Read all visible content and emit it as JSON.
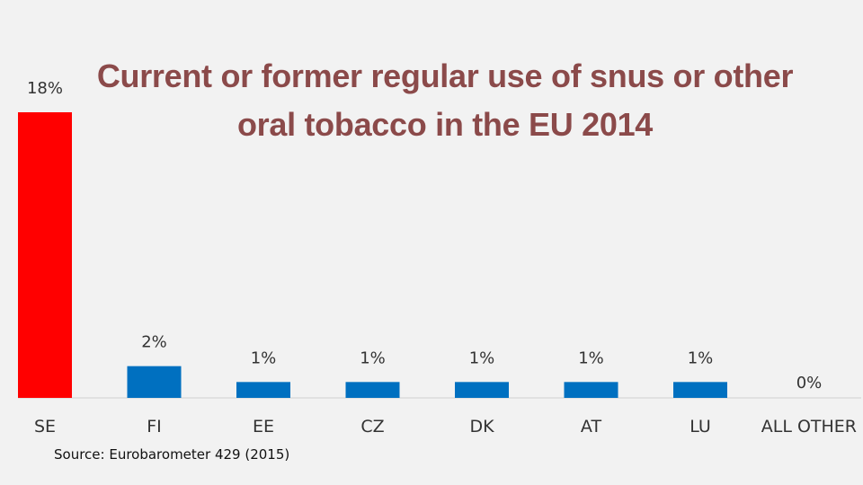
{
  "chart_data": {
    "type": "bar",
    "title": "Current or former regular use of snus or other oral tobacco in the EU 2014",
    "categories": [
      "SE",
      "FI",
      "EE",
      "CZ",
      "DK",
      "AT",
      "LU",
      "ALL OTHER"
    ],
    "values": [
      18,
      2,
      1,
      1,
      1,
      1,
      1,
      0
    ],
    "data_labels": [
      "18%",
      "2%",
      "1%",
      "1%",
      "1%",
      "1%",
      "1%",
      "0%"
    ],
    "ylim": [
      0,
      18
    ],
    "grid": false,
    "colors": {
      "highlight": "#ff0000",
      "default": "#0070c0"
    },
    "highlight_categories": [
      "SE"
    ]
  },
  "source": "Source: Eurobarometer 429 (2015)"
}
